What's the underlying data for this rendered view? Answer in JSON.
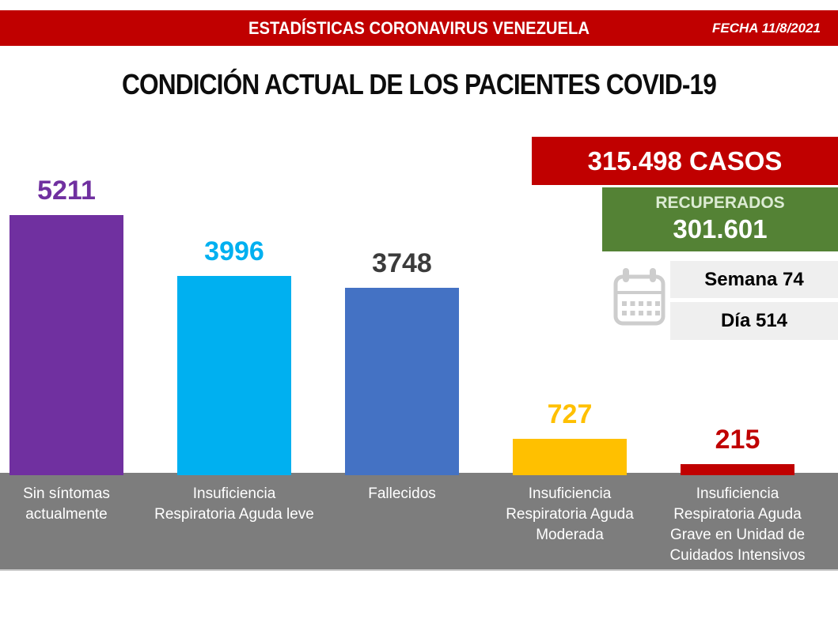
{
  "header": {
    "title": "ESTADÍSTICAS CORONAVIRUS VENEZUELA",
    "date_label": "FECHA 11/8/2021"
  },
  "title": "CONDICIÓN ACTUAL DE LOS PACIENTES COVID-19",
  "chart_data": {
    "type": "bar",
    "title": "CONDICIÓN ACTUAL DE LOS PACIENTES COVID-19",
    "categories": [
      "Sin síntomas actualmente",
      "Insuficiencia Respiratoria Aguda leve",
      "Fallecidos",
      "Insuficiencia Respiratoria Aguda Moderada",
      "Insuficiencia Respiratoria Aguda Grave en Unidad de Cuidados Intensivos"
    ],
    "category_lines": [
      [
        "Sin síntomas",
        "actualmente"
      ],
      [
        "Insuficiencia",
        "Respiratoria Aguda leve"
      ],
      [
        "Fallecidos"
      ],
      [
        "Insuficiencia",
        "Respiratoria Aguda",
        "Moderada"
      ],
      [
        "Insuficiencia",
        "Respiratoria Aguda",
        "Grave en Unidad de",
        "Cuidados Intensivos"
      ]
    ],
    "values": [
      5211,
      3996,
      3748,
      727,
      215
    ],
    "bar_colors": [
      "#7030A0",
      "#00B0F0",
      "#4472C4",
      "#FFC000",
      "#C00000"
    ],
    "value_label_colors": [
      "#7030A0",
      "#00B0F0",
      "#3B3B3B",
      "#FFC000",
      "#C00000"
    ],
    "xlabel": "",
    "ylabel": "",
    "ylim": [
      0,
      5500
    ],
    "grid": false,
    "legend": false
  },
  "summary": {
    "casos": "315.498 CASOS",
    "recuperados_label": "RECUPERADOS",
    "recuperados_value": "301.601",
    "semana": "Semana 74",
    "dia": "Día 514"
  },
  "icons": {
    "calendar": "calendar-icon"
  },
  "colors": {
    "header_bg": "#C00000",
    "casos_bg": "#C00000",
    "recuperados_bg": "#548235",
    "badge_bg": "#EFEFEF",
    "axis_band": "#7D7D7D",
    "calendar_icon": "#CDCDCD"
  }
}
